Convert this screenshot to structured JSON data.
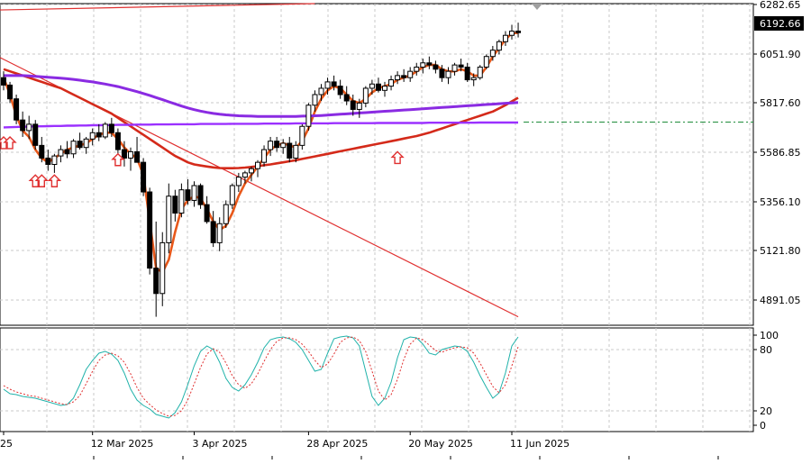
{
  "chart_data": [
    {
      "type": "candlestick",
      "panel": "price",
      "y_ticks": [
        "6282.65",
        "6051.90",
        "5817.60",
        "5586.85",
        "5356.10",
        "5121.80",
        "4891.05"
      ],
      "ylim": [
        4810,
        6330
      ],
      "current_price_label": "6192.66",
      "reference_level": 5770,
      "x_ticks": [
        {
          "label": "25",
          "index": 0
        },
        {
          "label": "12 Mar 2025",
          "index": 14
        },
        {
          "label": "3 Apr 2025",
          "index": 30
        },
        {
          "label": "28 Apr 2025",
          "index": 48
        },
        {
          "label": "20 May 2025",
          "index": 64
        },
        {
          "label": "11 Jun 2025",
          "index": 80
        }
      ],
      "ohlc": [
        [
          5980,
          6010,
          5920,
          5945
        ],
        [
          5945,
          5960,
          5860,
          5880
        ],
        [
          5880,
          5900,
          5760,
          5780
        ],
        [
          5780,
          5820,
          5700,
          5730
        ],
        [
          5730,
          5800,
          5690,
          5760
        ],
        [
          5760,
          5780,
          5640,
          5660
        ],
        [
          5660,
          5700,
          5580,
          5600
        ],
        [
          5600,
          5640,
          5540,
          5570
        ],
        [
          5570,
          5620,
          5530,
          5610
        ],
        [
          5610,
          5660,
          5580,
          5640
        ],
        [
          5640,
          5680,
          5600,
          5620
        ],
        [
          5620,
          5690,
          5600,
          5680
        ],
        [
          5680,
          5720,
          5640,
          5650
        ],
        [
          5650,
          5700,
          5620,
          5690
        ],
        [
          5690,
          5740,
          5660,
          5720
        ],
        [
          5720,
          5760,
          5680,
          5700
        ],
        [
          5700,
          5770,
          5690,
          5760
        ],
        [
          5760,
          5790,
          5700,
          5720
        ],
        [
          5720,
          5740,
          5620,
          5640
        ],
        [
          5640,
          5680,
          5560,
          5600
        ],
        [
          5600,
          5650,
          5540,
          5630
        ],
        [
          5630,
          5700,
          5590,
          5580
        ],
        [
          5580,
          5600,
          5420,
          5440
        ],
        [
          5440,
          5460,
          5050,
          5080
        ],
        [
          5080,
          5300,
          4850,
          4960
        ],
        [
          4960,
          5250,
          4900,
          5200
        ],
        [
          5200,
          5480,
          5150,
          5420
        ],
        [
          5420,
          5450,
          5300,
          5340
        ],
        [
          5340,
          5480,
          5320,
          5450
        ],
        [
          5450,
          5500,
          5380,
          5400
        ],
        [
          5400,
          5490,
          5370,
          5470
        ],
        [
          5470,
          5480,
          5360,
          5380
        ],
        [
          5380,
          5420,
          5290,
          5300
        ],
        [
          5300,
          5350,
          5180,
          5200
        ],
        [
          5200,
          5320,
          5160,
          5290
        ],
        [
          5290,
          5400,
          5270,
          5380
        ],
        [
          5380,
          5480,
          5360,
          5470
        ],
        [
          5470,
          5530,
          5440,
          5510
        ],
        [
          5510,
          5540,
          5480,
          5530
        ],
        [
          5530,
          5560,
          5490,
          5550
        ],
        [
          5550,
          5590,
          5510,
          5580
        ],
        [
          5580,
          5660,
          5560,
          5640
        ],
        [
          5640,
          5700,
          5610,
          5680
        ],
        [
          5680,
          5700,
          5630,
          5650
        ],
        [
          5650,
          5690,
          5620,
          5670
        ],
        [
          5670,
          5700,
          5580,
          5600
        ],
        [
          5600,
          5680,
          5580,
          5660
        ],
        [
          5660,
          5760,
          5640,
          5750
        ],
        [
          5750,
          5860,
          5730,
          5850
        ],
        [
          5850,
          5920,
          5820,
          5900
        ],
        [
          5900,
          5950,
          5870,
          5930
        ],
        [
          5930,
          5980,
          5900,
          5960
        ],
        [
          5960,
          5990,
          5920,
          5940
        ],
        [
          5940,
          5970,
          5880,
          5900
        ],
        [
          5900,
          5940,
          5850,
          5870
        ],
        [
          5870,
          5900,
          5800,
          5830
        ],
        [
          5830,
          5880,
          5790,
          5860
        ],
        [
          5860,
          5940,
          5840,
          5930
        ],
        [
          5930,
          5970,
          5900,
          5950
        ],
        [
          5950,
          5980,
          5910,
          5920
        ],
        [
          5920,
          5960,
          5890,
          5940
        ],
        [
          5940,
          5990,
          5920,
          5970
        ],
        [
          5970,
          6010,
          5950,
          5990
        ],
        [
          5990,
          6020,
          5960,
          5980
        ],
        [
          5980,
          6030,
          5960,
          6010
        ],
        [
          6010,
          6050,
          5990,
          6030
        ],
        [
          6030,
          6070,
          6000,
          6050
        ],
        [
          6050,
          6080,
          6020,
          6040
        ],
        [
          6040,
          6060,
          6000,
          6020
        ],
        [
          6020,
          6040,
          5960,
          5980
        ],
        [
          5980,
          6030,
          5950,
          6010
        ],
        [
          6010,
          6050,
          5990,
          6040
        ],
        [
          6040,
          6070,
          6010,
          6030
        ],
        [
          6030,
          6050,
          5960,
          5970
        ],
        [
          5970,
          6000,
          5940,
          5980
        ],
        [
          5980,
          6040,
          5970,
          6030
        ],
        [
          6030,
          6090,
          6020,
          6080
        ],
        [
          6080,
          6130,
          6060,
          6110
        ],
        [
          6110,
          6160,
          6090,
          6150
        ],
        [
          6150,
          6200,
          6130,
          6180
        ],
        [
          6180,
          6230,
          6160,
          6200
        ],
        [
          6200,
          6240,
          6170,
          6192.66
        ]
      ],
      "series": [
        {
          "kind": "sma-fast",
          "color": "#e8581a",
          "values": [
            5980,
            5900,
            5800,
            5730,
            5700,
            5640,
            5600,
            5580,
            5600,
            5620,
            5640,
            5650,
            5660,
            5670,
            5690,
            5710,
            5720,
            5720,
            5690,
            5650,
            5620,
            5600,
            5520,
            5300,
            5080,
            5060,
            5120,
            5250,
            5360,
            5400,
            5420,
            5410,
            5360,
            5300,
            5260,
            5280,
            5340,
            5420,
            5480,
            5520,
            5560,
            5600,
            5640,
            5660,
            5670,
            5660,
            5650,
            5680,
            5740,
            5820,
            5880,
            5920,
            5940,
            5930,
            5900,
            5870,
            5860,
            5880,
            5910,
            5930,
            5940,
            5950,
            5970,
            5980,
            5990,
            6010,
            6030,
            6040,
            6040,
            6020,
            6010,
            6010,
            6020,
            6010,
            5990,
            5990,
            6030,
            6080,
            6120,
            6160,
            6190,
            6192
          ]
        },
        {
          "kind": "sma-mid",
          "color": "#d42a1a",
          "values": [
            6020,
            6010,
            6000,
            5990,
            5980,
            5970,
            5960,
            5950,
            5940,
            5930,
            5915,
            5900,
            5885,
            5870,
            5855,
            5840,
            5825,
            5810,
            5790,
            5770,
            5750,
            5730,
            5710,
            5690,
            5670,
            5650,
            5630,
            5610,
            5595,
            5580,
            5570,
            5565,
            5560,
            5556,
            5553,
            5552,
            5552,
            5553,
            5555,
            5558,
            5562,
            5566,
            5570,
            5575,
            5580,
            5585,
            5590,
            5596,
            5602,
            5608,
            5614,
            5620,
            5626,
            5632,
            5638,
            5644,
            5650,
            5656,
            5662,
            5668,
            5674,
            5680,
            5686,
            5692,
            5698,
            5704,
            5712,
            5720,
            5730,
            5740,
            5750,
            5760,
            5770,
            5780,
            5790,
            5800,
            5810,
            5820,
            5835,
            5850,
            5868,
            5885
          ]
        },
        {
          "kind": "sma-slow",
          "color": "#8a2be2",
          "values": [
            5990,
            5990,
            5990,
            5990,
            5988,
            5986,
            5984,
            5982,
            5980,
            5978,
            5975,
            5972,
            5968,
            5964,
            5960,
            5955,
            5950,
            5944,
            5938,
            5930,
            5922,
            5914,
            5905,
            5896,
            5886,
            5876,
            5866,
            5856,
            5846,
            5837,
            5829,
            5822,
            5816,
            5811,
            5807,
            5804,
            5802,
            5800,
            5799,
            5798,
            5797,
            5797,
            5797,
            5797,
            5797,
            5797,
            5797,
            5798,
            5799,
            5800,
            5801,
            5803,
            5805,
            5807,
            5809,
            5811,
            5813,
            5815,
            5817,
            5819,
            5821,
            5823,
            5825,
            5827,
            5829,
            5831,
            5833,
            5835,
            5837,
            5839,
            5841,
            5843,
            5845,
            5847,
            5849,
            5851,
            5853,
            5855,
            5857,
            5859,
            5861,
            5863
          ]
        },
        {
          "kind": "sma-flat",
          "color": "#9b30ff",
          "values": [
            5745,
            5746,
            5747,
            5748,
            5749,
            5750,
            5750,
            5751,
            5752,
            5752,
            5753,
            5753,
            5754,
            5754,
            5755,
            5755,
            5756,
            5756,
            5757,
            5757,
            5757,
            5758,
            5758,
            5758,
            5759,
            5759,
            5759,
            5760,
            5760,
            5760,
            5760,
            5761,
            5761,
            5761,
            5761,
            5761,
            5762,
            5762,
            5762,
            5762,
            5762,
            5763,
            5763,
            5763,
            5763,
            5763,
            5764,
            5764,
            5764,
            5764,
            5764,
            5764,
            5765,
            5765,
            5765,
            5765,
            5765,
            5765,
            5765,
            5766,
            5766,
            5766,
            5766,
            5766,
            5766,
            5766,
            5766,
            5767,
            5767,
            5767,
            5767,
            5767,
            5767,
            5767,
            5767,
            5768,
            5768,
            5768,
            5768,
            5768,
            5768,
            5768
          ]
        }
      ],
      "trendlines": [
        {
          "color": "#e03030",
          "from": [
            0,
            6075
          ],
          "to": [
            81,
            4850
          ]
        },
        {
          "color": "#e03030",
          "from": [
            0,
            6300
          ],
          "to": [
            49,
            6330
          ]
        }
      ],
      "markers": [
        {
          "kind": "arrow-up",
          "index": 0,
          "price": 5700
        },
        {
          "kind": "arrow-up",
          "index": 1,
          "price": 5700
        },
        {
          "kind": "arrow-up",
          "index": 5,
          "price": 5520
        },
        {
          "kind": "arrow-up",
          "index": 6,
          "price": 5520
        },
        {
          "kind": "arrow-up",
          "index": 8,
          "price": 5520
        },
        {
          "kind": "arrow-up",
          "index": 18,
          "price": 5620
        },
        {
          "kind": "arrow-up",
          "index": 62,
          "price": 5630
        }
      ]
    },
    {
      "type": "line",
      "panel": "stochastic",
      "y_ticks": [
        "100",
        "80",
        "20",
        "0"
      ],
      "ylim": [
        0,
        100
      ],
      "levels": [
        80,
        20
      ],
      "series": [
        {
          "kind": "main",
          "color": "#20b2aa",
          "values": [
            40,
            35,
            34,
            32,
            31,
            30,
            28,
            26,
            24,
            22,
            23,
            30,
            45,
            62,
            72,
            80,
            82,
            79,
            72,
            58,
            40,
            28,
            22,
            18,
            12,
            10,
            8,
            14,
            26,
            45,
            66,
            82,
            88,
            84,
            70,
            52,
            42,
            38,
            45,
            56,
            70,
            86,
            95,
            97,
            98,
            96,
            92,
            84,
            72,
            60,
            62,
            80,
            96,
            98,
            99,
            97,
            88,
            60,
            32,
            22,
            30,
            48,
            75,
            95,
            98,
            97,
            90,
            80,
            78,
            84,
            86,
            88,
            87,
            82,
            70,
            55,
            42,
            30,
            36,
            58,
            88,
            98
          ]
        },
        {
          "kind": "signal",
          "color": "#e03030",
          "values": [
            44,
            40,
            37,
            35,
            33,
            32,
            30,
            28,
            26,
            24,
            23,
            26,
            33,
            46,
            60,
            72,
            78,
            80,
            77,
            70,
            57,
            42,
            30,
            23,
            17,
            13,
            10,
            11,
            16,
            28,
            46,
            64,
            79,
            85,
            81,
            69,
            55,
            45,
            41,
            46,
            57,
            71,
            84,
            93,
            97,
            97,
            95,
            90,
            82,
            72,
            64,
            68,
            79,
            92,
            97,
            98,
            94,
            82,
            60,
            38,
            28,
            34,
            51,
            73,
            90,
            97,
            95,
            89,
            83,
            81,
            84,
            86,
            87,
            86,
            80,
            69,
            56,
            43,
            36,
            45,
            66,
            87
          ]
        }
      ]
    }
  ]
}
